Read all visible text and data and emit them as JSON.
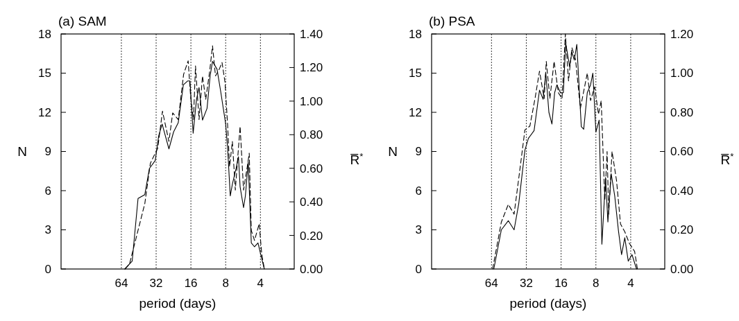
{
  "chart_data": [
    {
      "type": "line",
      "title": "(a) SAM",
      "xlabel": "period (days)",
      "ylabel": "N",
      "y2label": "R̅$^{*}$",
      "log": "x",
      "grid": "x",
      "xlim": [
        213,
        2.04
      ],
      "xticks": [
        64,
        32,
        16,
        8,
        4
      ],
      "ylim": [
        0,
        18
      ],
      "yticks": [
        0,
        3,
        6,
        9,
        12,
        15,
        18
      ],
      "y2lim": [
        0,
        1.4
      ],
      "y2ticks": [
        {
          "value": 0,
          "label": "0.00"
        },
        {
          "value": 0.2,
          "label": "0.20"
        },
        {
          "value": 0.4,
          "label": "0.40"
        },
        {
          "value": 0.6,
          "label": "0.60"
        },
        {
          "value": 0.8,
          "label": "0.80"
        },
        {
          "value": 1.0,
          "label": "1.00"
        },
        {
          "value": 1.2,
          "label": "1.20"
        },
        {
          "value": 1.4,
          "label": "1.40"
        }
      ],
      "series": [
        {
          "type": "line",
          "color": "#000000",
          "line_style": "solid",
          "x": [
            59.8,
            51.6,
            45.9,
            40.1,
            36.6,
            32.6,
            30.4,
            28.4,
            24.8,
            22.6,
            20.6,
            18.6,
            17.1,
            16.3,
            15.3,
            14.3,
            13.6,
            12.7,
            11.6,
            10.9,
            10.4,
            9.5,
            8.8,
            8.0,
            7.7,
            7.3,
            7.0,
            6.5,
            6.2,
            6.0,
            5.6,
            5.4,
            5.1,
            4.8,
            4.5,
            4.2,
            3.95,
            3.7
          ],
          "values": [
            0,
            0.6,
            5.4,
            5.7,
            7.7,
            8.3,
            10.2,
            11.1,
            9.2,
            10.5,
            11.2,
            14.1,
            14.4,
            14.4,
            10.4,
            13.0,
            13.9,
            11.4,
            12.3,
            14.8,
            15.9,
            15.3,
            13.5,
            11.1,
            9.3,
            5.6,
            6.5,
            7.7,
            8.6,
            6.3,
            4.7,
            5.6,
            8.2,
            2.0,
            1.7,
            2.0,
            1.0,
            0
          ]
        },
        {
          "type": "line",
          "color": "#000000",
          "line_style": "dashed",
          "axis": "y2",
          "x": [
            59.3,
            54.4,
            40.1,
            35.9,
            31.0,
            28.2,
            24.8,
            23.0,
            20.6,
            18.5,
            16.9,
            16.1,
            15.2,
            14.6,
            13.6,
            12.7,
            11.9,
            11.0,
            10.4,
            9.8,
            9.1,
            8.6,
            8.1,
            7.7,
            7.4,
            7.0,
            6.6,
            6.2,
            6.0,
            5.6,
            5.2,
            5.0,
            4.8,
            4.5,
            4.1,
            3.9,
            3.7
          ],
          "values": [
            0,
            0.03,
            0.39,
            0.63,
            0.72,
            0.94,
            0.76,
            0.93,
            0.89,
            1.16,
            1.24,
            1.03,
            0.89,
            1.21,
            0.89,
            1.15,
            1.01,
            1.18,
            1.33,
            1.15,
            1.19,
            1.23,
            1.11,
            0.86,
            0.61,
            0.76,
            0.47,
            0.72,
            0.85,
            0.47,
            0.61,
            0.69,
            0.23,
            0.17,
            0.27,
            0.09,
            0
          ]
        }
      ]
    },
    {
      "type": "line",
      "title": "(b) PSA",
      "xlabel": "period (days)",
      "ylabel": "N",
      "y2label": "R̅$^{*}$",
      "log": "x",
      "grid": "x",
      "xlim": [
        211,
        2.03
      ],
      "xticks": [
        64,
        32,
        16,
        8,
        4
      ],
      "ylim": [
        0,
        18
      ],
      "yticks": [
        0,
        3,
        6,
        9,
        12,
        15,
        18
      ],
      "y2lim": [
        0,
        1.2
      ],
      "y2ticks": [
        {
          "value": 0,
          "label": "0.00"
        },
        {
          "value": 0.2,
          "label": "0.20"
        },
        {
          "value": 0.4,
          "label": "0.40"
        },
        {
          "value": 0.6,
          "label": "0.60"
        },
        {
          "value": 0.8,
          "label": "0.80"
        },
        {
          "value": 1.0,
          "label": "1.00"
        },
        {
          "value": 1.2,
          "label": "1.20"
        }
      ],
      "series": [
        {
          "type": "line",
          "color": "#000000",
          "line_style": "solid",
          "x": [
            61.1,
            52.6,
            45.8,
            40.8,
            37.2,
            32.9,
            30.7,
            27.4,
            24.6,
            22.9,
            21.7,
            20.4,
            19.2,
            18.2,
            17.4,
            16.2,
            15.3,
            14.6,
            13.5,
            12.9,
            12.3,
            11.7,
            10.7,
            10.2,
            9.5,
            8.9,
            8.5,
            8.0,
            7.5,
            7.1,
            6.6,
            6.3,
            5.9,
            5.5,
            5.1,
            4.8,
            4.5,
            4.2,
            3.9,
            3.56
          ],
          "values": [
            0,
            3.0,
            3.7,
            3.0,
            5.0,
            9.1,
            10.0,
            10.6,
            13.7,
            13.0,
            15.0,
            12.0,
            11.1,
            13.5,
            14.1,
            13.5,
            13.5,
            17.3,
            15.5,
            16.6,
            16.0,
            17.2,
            10.9,
            10.7,
            13.5,
            14.1,
            15.0,
            10.5,
            11.4,
            1.9,
            7.0,
            3.6,
            7.3,
            5.6,
            2.9,
            1.1,
            2.4,
            0.6,
            1.1,
            0
          ]
        },
        {
          "type": "line",
          "color": "#000000",
          "line_style": "dashed",
          "axis": "y2",
          "x": [
            62.6,
            52.6,
            45.8,
            40.8,
            36.5,
            32.9,
            29.8,
            26.9,
            24.6,
            22.4,
            21.5,
            20.0,
            18.4,
            16.9,
            15.7,
            14.7,
            13.8,
            12.9,
            12.0,
            10.9,
            9.5,
            8.9,
            8.2,
            7.6,
            7.2,
            6.7,
            6.4,
            6.2,
            5.8,
            5.3,
            4.9,
            4.5,
            4.1,
            3.7,
            3.5
          ],
          "values": [
            0,
            0.24,
            0.33,
            0.28,
            0.5,
            0.71,
            0.73,
            0.87,
            1.01,
            0.87,
            1.06,
            0.87,
            1.06,
            0.9,
            0.87,
            1.2,
            0.96,
            1.13,
            1.07,
            0.82,
            1.0,
            0.86,
            0.93,
            0.79,
            0.86,
            0.35,
            0.6,
            0.28,
            0.6,
            0.45,
            0.23,
            0.19,
            0.13,
            0.09,
            0
          ]
        }
      ]
    }
  ]
}
